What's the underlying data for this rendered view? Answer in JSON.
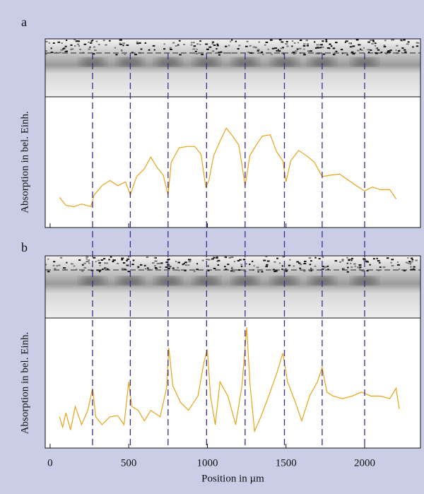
{
  "chart_data": [
    {
      "type": "line",
      "panel": "a",
      "ylabel": "Absorption in bel. Einh.",
      "color": "#e8a317",
      "xlim": [
        -31,
        2355
      ],
      "ylim": [
        0,
        100
      ],
      "reference_lines_x": [
        270,
        510,
        750,
        995,
        1240,
        1490,
        1730,
        2000
      ],
      "x": [
        60,
        100,
        150,
        200,
        260,
        280,
        330,
        380,
        430,
        480,
        510,
        550,
        600,
        640,
        680,
        720,
        750,
        770,
        820,
        870,
        920,
        960,
        990,
        1010,
        1040,
        1080,
        1120,
        1160,
        1200,
        1240,
        1270,
        1310,
        1350,
        1400,
        1440,
        1480,
        1500,
        1530,
        1580,
        1630,
        1680,
        1730,
        1780,
        1840,
        1900,
        1960,
        2000,
        2050,
        2100,
        2160,
        2200
      ],
      "values": [
        23,
        17,
        16,
        18,
        16,
        25,
        32,
        36,
        32,
        35,
        25,
        39,
        45,
        54,
        46,
        40,
        25,
        50,
        61,
        62,
        62,
        56,
        31,
        36,
        55,
        66,
        76,
        70,
        63,
        32,
        55,
        63,
        70,
        71,
        58,
        51,
        35,
        51,
        59,
        55,
        50,
        39,
        40,
        41,
        36,
        31,
        28,
        31,
        29,
        29,
        22
      ]
    },
    {
      "type": "line",
      "panel": "b",
      "ylabel": "Absorption in bel. Einh.",
      "xlabel": "Position in µm",
      "color": "#e8a317",
      "xlim": [
        -31,
        2355
      ],
      "ylim": [
        0,
        100
      ],
      "xticks": [
        0,
        500,
        1000,
        1500,
        2000
      ],
      "reference_lines_x": [
        270,
        510,
        750,
        995,
        1240,
        1490,
        1730,
        2000
      ],
      "x": [
        60,
        80,
        100,
        130,
        160,
        200,
        240,
        270,
        290,
        330,
        380,
        430,
        470,
        500,
        520,
        560,
        600,
        640,
        700,
        740,
        755,
        780,
        830,
        880,
        940,
        980,
        1000,
        1020,
        1050,
        1080,
        1130,
        1180,
        1220,
        1250,
        1270,
        1300,
        1340,
        1390,
        1440,
        1480,
        1510,
        1560,
        1600,
        1650,
        1700,
        1730,
        1760,
        1800,
        1860,
        1920,
        1980,
        2040,
        2100,
        2160,
        2200,
        2220
      ],
      "values": [
        24,
        16,
        27,
        14,
        32,
        18,
        29,
        46,
        24,
        18,
        24,
        25,
        18,
        51,
        32,
        29,
        21,
        29,
        24,
        46,
        77,
        48,
        35,
        29,
        40,
        67,
        76,
        40,
        18,
        51,
        40,
        18,
        48,
        93,
        51,
        13,
        24,
        40,
        57,
        73,
        51,
        35,
        21,
        40,
        51,
        62,
        43,
        40,
        38,
        40,
        43,
        40,
        40,
        38,
        46,
        30
      ]
    }
  ]
}
